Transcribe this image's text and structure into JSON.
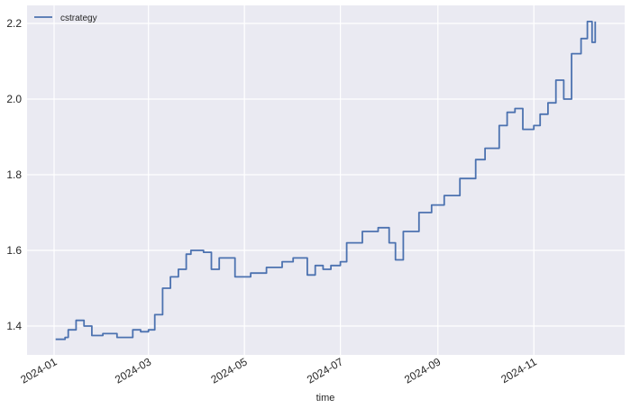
{
  "chart_data": {
    "type": "line",
    "title": "",
    "xlabel": "time",
    "ylabel": "",
    "ylim": [
      1.325,
      2.22
    ],
    "grid": true,
    "legend_position": "upper left",
    "x_ticks": [
      "2024-01",
      "2024-03",
      "2024-05",
      "2024-07",
      "2024-09",
      "2024-11"
    ],
    "y_ticks": [
      "1.4",
      "1.6",
      "1.8",
      "2.0",
      "2.2"
    ],
    "series": [
      {
        "name": "cstrategy",
        "color": "#4c72b0",
        "x": [
          "2024-01-02",
          "2024-01-08",
          "2024-01-10",
          "2024-01-15",
          "2024-01-20",
          "2024-01-25",
          "2024-02-01",
          "2024-02-10",
          "2024-02-20",
          "2024-02-25",
          "2024-03-01",
          "2024-03-05",
          "2024-03-10",
          "2024-03-15",
          "2024-03-20",
          "2024-03-25",
          "2024-03-28",
          "2024-04-05",
          "2024-04-10",
          "2024-04-15",
          "2024-04-25",
          "2024-05-05",
          "2024-05-15",
          "2024-05-25",
          "2024-06-01",
          "2024-06-10",
          "2024-06-15",
          "2024-06-20",
          "2024-06-25",
          "2024-07-01",
          "2024-07-05",
          "2024-07-15",
          "2024-07-25",
          "2024-08-01",
          "2024-08-05",
          "2024-08-10",
          "2024-08-20",
          "2024-08-28",
          "2024-09-05",
          "2024-09-15",
          "2024-09-25",
          "2024-10-01",
          "2024-10-10",
          "2024-10-15",
          "2024-10-20",
          "2024-10-25",
          "2024-11-01",
          "2024-11-05",
          "2024-11-10",
          "2024-11-15",
          "2024-11-20",
          "2024-11-25",
          "2024-12-01",
          "2024-12-05",
          "2024-12-08",
          "2024-12-10"
        ],
        "values": [
          1.365,
          1.37,
          1.39,
          1.415,
          1.4,
          1.375,
          1.38,
          1.37,
          1.39,
          1.385,
          1.39,
          1.43,
          1.5,
          1.53,
          1.55,
          1.59,
          1.6,
          1.595,
          1.55,
          1.58,
          1.53,
          1.54,
          1.555,
          1.57,
          1.58,
          1.535,
          1.56,
          1.55,
          1.56,
          1.57,
          1.62,
          1.65,
          1.66,
          1.62,
          1.575,
          1.65,
          1.7,
          1.72,
          1.745,
          1.79,
          1.84,
          1.87,
          1.93,
          1.965,
          1.975,
          1.92,
          1.93,
          1.96,
          1.99,
          2.05,
          2.0,
          2.12,
          2.16,
          2.205,
          2.15,
          2.205
        ]
      }
    ]
  },
  "legend": {
    "label": "cstrategy"
  },
  "axes": {
    "xlabel": "time"
  }
}
